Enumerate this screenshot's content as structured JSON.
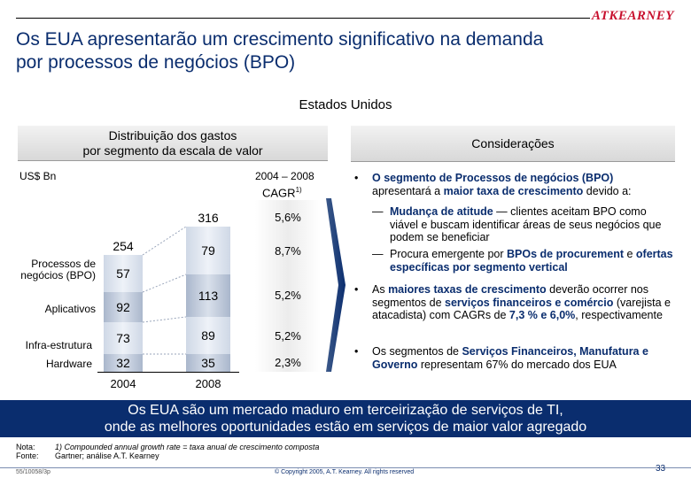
{
  "logo": "ATKEARNEY",
  "title_line1": "Os EUA apresentarão um crescimento significativo na demanda",
  "title_line2": "por processos de negócios (BPO)",
  "region": "Estados Unidos",
  "left_header_line1": "Distribuição dos gastos",
  "left_header_line2": "por segmento da escala de valor",
  "right_header": "Considerações",
  "currency": "US$ Bn",
  "period": "2004 – 2008",
  "cagr_label": "CAGR",
  "cagr_sup": "1)",
  "chart_data": {
    "type": "bar",
    "stacked": true,
    "categories": [
      "2004",
      "2008"
    ],
    "series": [
      {
        "name": "Hardware",
        "values": [
          32,
          35
        ],
        "cagr": "2,3%"
      },
      {
        "name": "Infra-estrutura",
        "values": [
          73,
          89
        ],
        "cagr": "5,2%"
      },
      {
        "name": "Aplicativos",
        "values": [
          92,
          113
        ],
        "cagr": "5,2%"
      },
      {
        "name": "Processos de negócios (BPO)",
        "values": [
          57,
          79
        ],
        "cagr": "8,7%"
      }
    ],
    "totals": [
      254,
      316
    ],
    "total_cagr": "5,6%"
  },
  "legend": {
    "bpo": "Processos de negócios (BPO)",
    "aplicativos": "Aplicativos",
    "infra": "Infra-estrutura",
    "hardware": "Hardware"
  },
  "considerations": {
    "b1_pre": "O segmento de Processos de negócios (BPO)",
    "b1_mid": "apresentará a ",
    "b1_hl": "maior taxa de crescimento",
    "b1_post": " devido a:",
    "s1_hl": "Mudança de atitude",
    "s1_rest": " — clientes aceitam BPO como viável e buscam identificar áreas de seus negócios que podem se beneficiar",
    "s2_pre": "Procura emergente por ",
    "s2_hl1": "BPOs de procurement",
    "s2_mid": " e ",
    "s2_hl2": "ofertas específicas por segmento vertical",
    "b2_pre": "As ",
    "b2_hl1": "maiores taxas de crescimento",
    "b2_mid": " deverão ocorrer nos segmentos de ",
    "b2_hl2": "serviços financeiros e comércio",
    "b2_mid2": " (varejista e atacadista) com CAGRs de ",
    "b2_hl3": "7,3 % e 6,0%",
    "b2_post": ", respectivamente",
    "b3_pre": "Os segmentos de ",
    "b3_hl": "Serviços Financeiros, Manufatura e Governo",
    "b3_post": " representam 67% do mercado dos EUA"
  },
  "bottom_line1": "Os EUA são um mercado maduro em terceirização de serviços de TI,",
  "bottom_line2": "onde as melhores oportunidades estão em serviços de maior valor agregado",
  "note_label": "Nota:",
  "note_text": "1) Compounded annual growth rate = taxa anual de crescimento composta",
  "source_label": "Fonte:",
  "source_text": "Gartner; análise A.T. Kearney",
  "doc_code": "55/10058/3p",
  "copyright": "© Copyright 2005, A.T. Kearney. All rights reserved",
  "page_number": "33"
}
